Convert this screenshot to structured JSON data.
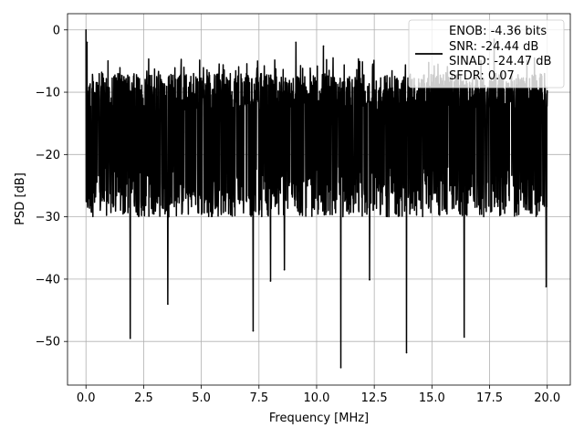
{
  "chart_data": {
    "type": "line",
    "title": "",
    "xlabel": "Frequency [MHz]",
    "ylabel": "PSD [dB]",
    "xlim": [
      -0.8,
      21.0
    ],
    "ylim": [
      -57.0,
      2.6
    ],
    "grid": true,
    "line_color": "#000000",
    "x_ticks": [
      0.0,
      2.5,
      5.0,
      7.5,
      10.0,
      12.5,
      15.0,
      17.5,
      20.0
    ],
    "x_tick_labels": [
      "0.0",
      "2.5",
      "5.0",
      "7.5",
      "10.0",
      "12.5",
      "15.0",
      "17.5",
      "20.0"
    ],
    "y_ticks": [
      0,
      -10,
      -20,
      -30,
      -40,
      -50
    ],
    "y_tick_labels": [
      "0",
      "−10",
      "−20",
      "−30",
      "−40",
      "−50"
    ],
    "legend": {
      "placement": "upper right",
      "entries": [
        "ENOB: -4.36 bits",
        "SNR: -24.44 dB",
        "SINAD: -24.47 dB",
        "SFDR: 0.07"
      ]
    },
    "series": [
      {
        "x_start": 0.0,
        "x_end": 20.0,
        "envelope_top": -7,
        "envelope_bottom": -30,
        "spikes": [
          {
            "x": 0.0,
            "y": 0.0
          },
          {
            "x": 0.05,
            "y": -2
          },
          {
            "x": 1.92,
            "y": -49.5
          },
          {
            "x": 3.55,
            "y": -44.0
          },
          {
            "x": 7.25,
            "y": -48.3
          },
          {
            "x": 8.0,
            "y": -40.3
          },
          {
            "x": 8.6,
            "y": -38.5
          },
          {
            "x": 9.1,
            "y": -2.0
          },
          {
            "x": 10.3,
            "y": -2.6
          },
          {
            "x": 11.05,
            "y": -54.2
          },
          {
            "x": 12.3,
            "y": -40.1
          },
          {
            "x": 13.9,
            "y": -51.8
          },
          {
            "x": 16.4,
            "y": -49.3
          },
          {
            "x": 17.7,
            "y": -1.5
          },
          {
            "x": 19.95,
            "y": -41.2
          }
        ]
      }
    ]
  }
}
